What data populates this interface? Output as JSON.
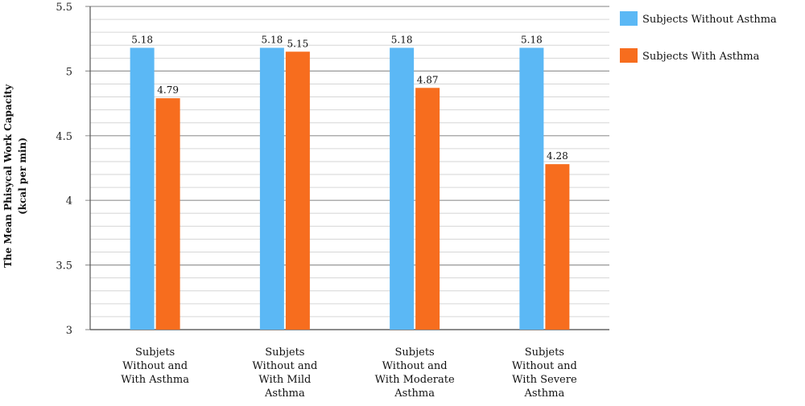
{
  "chart_data": {
    "type": "bar",
    "categories": [
      [
        "Subjets",
        "Without and",
        "With Asthma"
      ],
      [
        "Subjets",
        "Without and",
        "With Mild",
        "Asthma"
      ],
      [
        "Subjets",
        "Without and",
        "With Moderate",
        "Asthma"
      ],
      [
        "Subjets",
        "Without and",
        "With Severe",
        "Asthma"
      ]
    ],
    "series": [
      {
        "name": "Subjects Without Asthma",
        "values": [
          5.18,
          5.18,
          5.18,
          5.18
        ],
        "labels": [
          "5.18",
          "5.18",
          "5.18",
          "5.18"
        ],
        "color": "#5bb8f5"
      },
      {
        "name": "Subjects With Asthma",
        "values": [
          4.79,
          5.15,
          4.87,
          4.28
        ],
        "labels": [
          "4.79",
          "5.15",
          "4.87",
          "4.28"
        ],
        "color": "#f76d1e"
      }
    ],
    "ylabel": [
      "The Mean Phisycal Work Capacity",
      "(kcal per min)"
    ],
    "ylim": [
      3,
      5.5
    ],
    "yticks": [
      "3",
      "3.5",
      "4",
      "4.5",
      "5",
      "5.5"
    ],
    "ytick_values": [
      3,
      3.5,
      4,
      4.5,
      5,
      5.5
    ],
    "minor_step": 0.1,
    "grid": true,
    "legend_position": "right"
  }
}
